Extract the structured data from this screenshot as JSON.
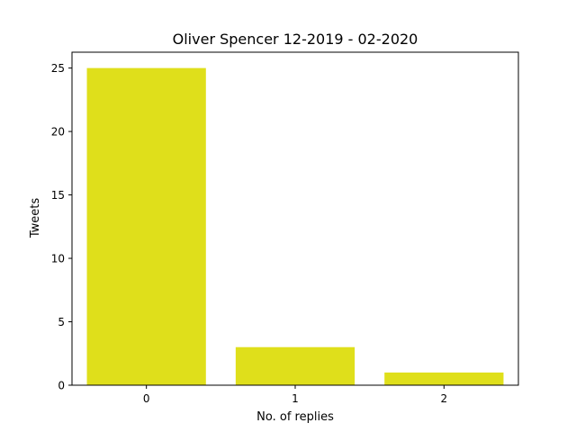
{
  "chart_data": {
    "type": "bar",
    "title": "Oliver Spencer 12-2019 - 02-2020",
    "xlabel": "No. of replies",
    "ylabel": "Tweets",
    "categories": [
      "0",
      "1",
      "2"
    ],
    "values": [
      25,
      3,
      1
    ],
    "ylim": [
      0,
      26.25
    ],
    "yticks": [
      0,
      5,
      10,
      15,
      20,
      25
    ],
    "bar_color": "#dfdf1b",
    "grid": false,
    "legend": "none"
  }
}
